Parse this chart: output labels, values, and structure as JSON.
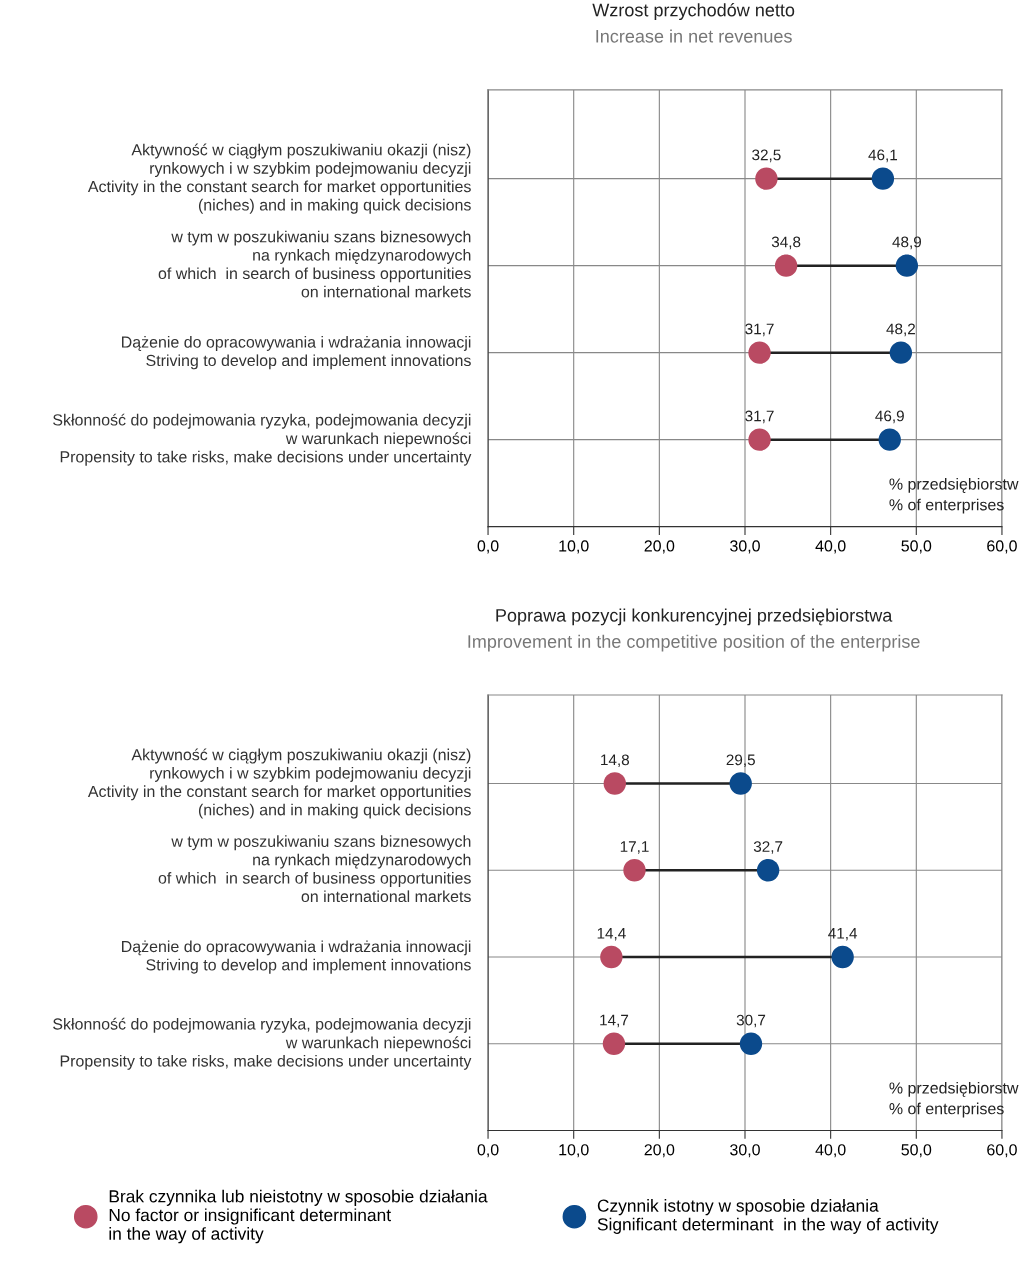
{
  "chart_data": [
    {
      "type": "scatter",
      "title": "Wzrost przychodów netto",
      "subtitle": "Increase in net revenues",
      "orientation": "horizontal",
      "xlabel": "% przedsiębiorstw\n% of enterprises",
      "categories": [
        "Aktywność w ciągłym poszukiwaniu okazji (nisz)\nrynkowych i w szybkim podejmowaniu decyzji\nActivity in the constant search for market opportunities\n(niches) and in making quick decisions",
        "w tym w poszukiwaniu szans biznesowych\nna rynkach międzynarodowych\nof which  in search of business opportunities\non international markets",
        "Dążenie do opracowywania i wdrażania innowacji\nStriving to develop and implement innovations",
        "Skłonność do podejmowania ryzyka, podejmowania decyzji\nw warunkach niepewności\nPropensity to take risks, make decisions under uncertainty"
      ],
      "series": [
        {
          "color": "#b94a62",
          "values": [
            32.5,
            34.8,
            31.7,
            31.7
          ],
          "value_labels": [
            "32,5",
            "34,8",
            "31,7",
            "31,7"
          ]
        },
        {
          "color": "#0b4a8c",
          "values": [
            46.1,
            48.9,
            48.2,
            46.9
          ],
          "value_labels": [
            "46,1",
            "48,9",
            "48,2",
            "46,9"
          ]
        }
      ],
      "xlim": [
        0,
        60
      ],
      "xticks": [
        {
          "value": 0,
          "label": "0,0"
        },
        {
          "value": 10,
          "label": "10,0"
        },
        {
          "value": 20,
          "label": "20,0"
        },
        {
          "value": 30,
          "label": "30,0"
        },
        {
          "value": 40,
          "label": "40,0"
        },
        {
          "value": 50,
          "label": "50,0"
        },
        {
          "value": 60,
          "label": "60,0"
        }
      ],
      "grid": true,
      "marker": "circle",
      "legend": false
    },
    {
      "type": "scatter",
      "title": "Poprawa pozycji konkurencyjnej przedsiębiorstwa",
      "subtitle": "Improvement in the competitive position of the enterprise",
      "orientation": "horizontal",
      "xlabel": "% przedsiębiorstw\n% of enterprises",
      "categories": [
        "Aktywność w ciągłym poszukiwaniu okazji (nisz)\nrynkowych i w szybkim podejmowaniu decyzji\nActivity in the constant search for market opportunities\n(niches) and in making quick decisions",
        "w tym w poszukiwaniu szans biznesowych\nna rynkach międzynarodowych\nof which  in search of business opportunities\non international markets",
        "Dążenie do opracowywania i wdrażania innowacji\nStriving to develop and implement innovations",
        "Skłonność do podejmowania ryzyka, podejmowania decyzji\nw warunkach niepewności\nPropensity to take risks, make decisions under uncertainty"
      ],
      "series": [
        {
          "name": "Brak czynnika lub nieistotny w sposobie działania\nNo factor or insignificant determinant\nin the way of activity",
          "color": "#b94a62",
          "values": [
            14.8,
            17.1,
            14.4,
            14.7
          ],
          "value_labels": [
            "14,8",
            "17,1",
            "14,4",
            "14,7"
          ]
        },
        {
          "name": "Czynnik istotny w sposobie działania\nSignificant determinant  in the way of activity",
          "color": "#0b4a8c",
          "values": [
            29.5,
            32.7,
            41.4,
            30.7
          ],
          "value_labels": [
            "29,5",
            "32,7",
            "41,4",
            "30,7"
          ]
        }
      ],
      "xlim": [
        0,
        60
      ],
      "xticks": [
        {
          "value": 0,
          "label": "0,0"
        },
        {
          "value": 10,
          "label": "10,0"
        },
        {
          "value": 20,
          "label": "20,0"
        },
        {
          "value": 30,
          "label": "30,0"
        },
        {
          "value": 40,
          "label": "40,0"
        },
        {
          "value": 50,
          "label": "50,0"
        },
        {
          "value": 60,
          "label": "60,0"
        }
      ],
      "grid": true,
      "marker": "circle",
      "legend": "bottom"
    }
  ]
}
